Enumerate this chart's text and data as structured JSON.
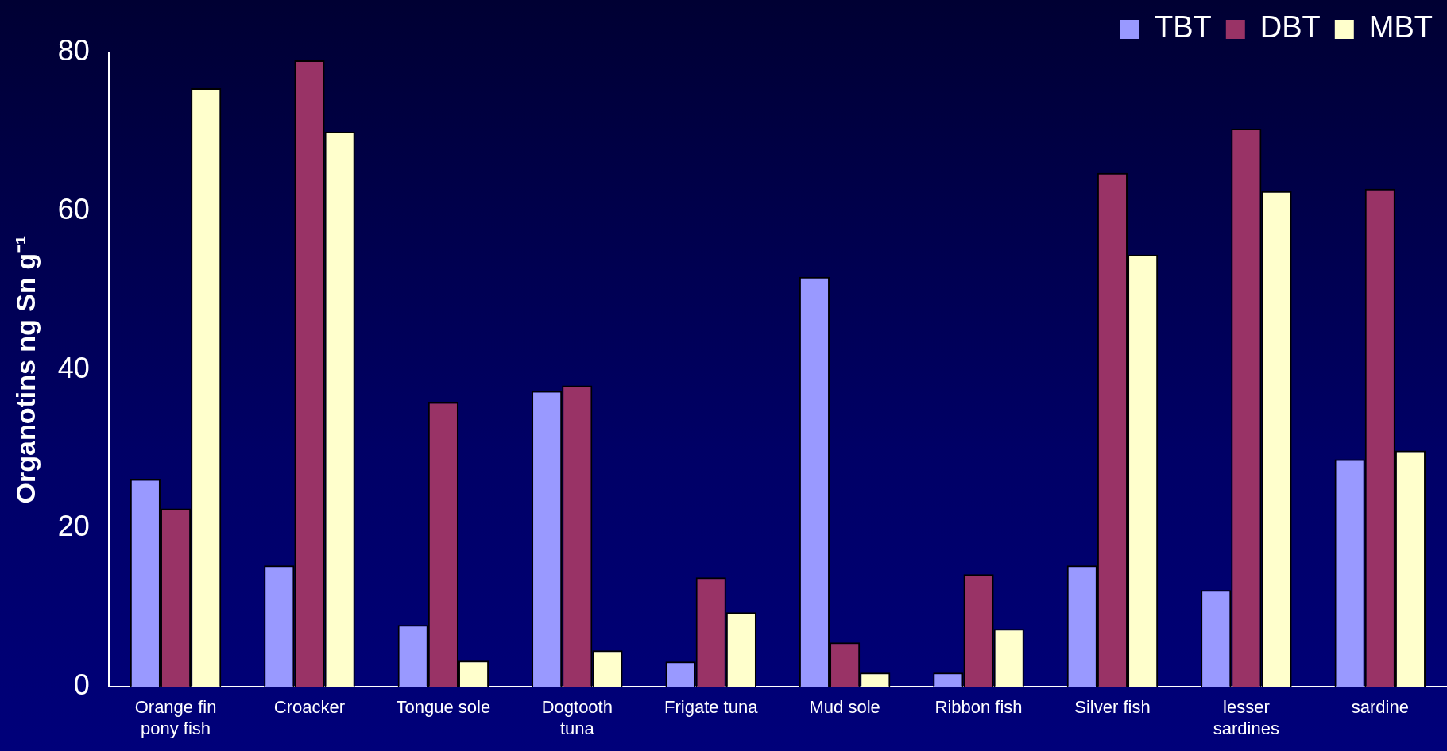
{
  "chart_data": {
    "type": "bar",
    "ylabel": "Organotins ng Sn g⁻¹",
    "categories": [
      "Orange fin pony fish",
      "Croacker",
      "Tongue sole",
      "Dogtooth tuna",
      "Frigate tuna",
      "Mud sole",
      "Ribbon fish",
      "Silver fish",
      "lesser sardines",
      "sardine"
    ],
    "series": [
      {
        "name": "TBT",
        "color": "#9999ff",
        "values": [
          26.2,
          15.3,
          7.8,
          37.3,
          3.2,
          51.7,
          1.8,
          15.3,
          12.2,
          28.7
        ]
      },
      {
        "name": "DBT",
        "color": "#993366",
        "values": [
          22.5,
          79,
          35.9,
          38,
          13.8,
          5.6,
          14.2,
          64.8,
          70.4,
          62.8
        ]
      },
      {
        "name": "MBT",
        "color": "#ffffcc",
        "values": [
          75.5,
          70,
          3.3,
          4.6,
          9.4,
          1.8,
          7.3,
          54.5,
          62.5,
          29.8
        ]
      }
    ],
    "ylim": [
      0,
      80
    ],
    "yticks": [
      0,
      20,
      40,
      60,
      80
    ],
    "grid": false,
    "legend": "top right"
  }
}
